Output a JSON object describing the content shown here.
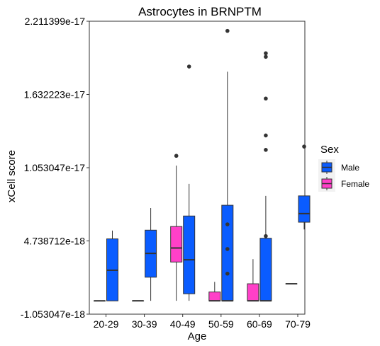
{
  "chart_data": {
    "type": "boxplot",
    "title": "Astrocytes in BRNPTM",
    "xlabel": "Age",
    "ylabel": "xCell score",
    "categories": [
      "20-29",
      "30-39",
      "40-49",
      "50-59",
      "60-69",
      "70-79"
    ],
    "y_ticks": [
      {
        "value": -1.053047e-18,
        "label": "-1.053047e-18"
      },
      {
        "value": 4.738712e-18,
        "label": "4.738712e-18"
      },
      {
        "value": 1.053047e-17,
        "label": "1.053047e-17"
      },
      {
        "value": 1.632223e-17,
        "label": "1.632223e-17"
      },
      {
        "value": 2.211399e-17,
        "label": "2.211399e-17"
      }
    ],
    "ylim": [
      -1.053047e-18,
      2.211399e-17
    ],
    "grid": false,
    "legend": {
      "title": "Sex",
      "placement": "right",
      "entries": [
        {
          "name": "Male",
          "color": "#0a5cff"
        },
        {
          "name": "Female",
          "color": "#ff40c8"
        }
      ]
    },
    "series": [
      {
        "name": "Female",
        "color": "#ff40c8",
        "boxes": [
          {
            "category": "20-29",
            "whisker_low": 0,
            "q1": 0,
            "median": 0,
            "q3": 0,
            "whisker_high": 0,
            "outliers": []
          },
          {
            "category": "30-39",
            "whisker_low": 0,
            "q1": 0,
            "median": 0,
            "q3": 0,
            "whisker_high": 0,
            "outliers": []
          },
          {
            "category": "40-49",
            "whisker_low": 0,
            "q1": 3.07e-18,
            "median": 4.18e-18,
            "q3": 5.88e-18,
            "whisker_high": 1.07e-17,
            "outliers": [
              1.147e-17
            ]
          },
          {
            "category": "50-59",
            "whisker_low": 0,
            "q1": 0,
            "median": 0,
            "q3": 7e-19,
            "whisker_high": 1.5e-18,
            "outliers": []
          },
          {
            "category": "60-69",
            "whisker_low": 0,
            "q1": 0,
            "median": 0,
            "q3": 1.35e-18,
            "whisker_high": 3.3e-18,
            "outliers": []
          },
          {
            "category": "70-79",
            "whisker_low": 1.35e-18,
            "q1": 1.35e-18,
            "median": 1.35e-18,
            "q3": 1.35e-18,
            "whisker_high": 1.35e-18,
            "outliers": []
          }
        ]
      },
      {
        "name": "Male",
        "color": "#0a5cff",
        "boxes": [
          {
            "category": "20-29",
            "whisker_low": 0,
            "q1": 0,
            "median": 2.42e-18,
            "q3": 4.9e-18,
            "whisker_high": 5.56e-18,
            "outliers": []
          },
          {
            "category": "30-39",
            "whisker_low": 0,
            "q1": 1.87e-18,
            "median": 3.75e-18,
            "q3": 5.59e-18,
            "whisker_high": 7.34e-18,
            "outliers": []
          },
          {
            "category": "40-49",
            "whisker_low": 0,
            "q1": 5.6e-19,
            "median": 3.25e-18,
            "q3": 6.71e-18,
            "whisker_high": 9.25e-18,
            "outliers": [
              1.853e-17
            ]
          },
          {
            "category": "50-59",
            "whisker_low": 0,
            "q1": 0,
            "median": 0,
            "q3": 7.56e-18,
            "whisker_high": 1.812e-17,
            "outliers": [
              2.135e-17,
              6.05e-18,
              4.1e-18,
              2.15e-18
            ]
          },
          {
            "category": "60-69",
            "whisker_low": 0,
            "q1": 0,
            "median": 0,
            "q3": 4.95e-18,
            "whisker_high": 8.3e-18,
            "outliers": [
              1.958e-17,
              1.93e-17,
              1.6e-17,
              1.308e-17,
              1.194e-17,
              5.12e-18
            ]
          },
          {
            "category": "70-79",
            "whisker_low": 5.65e-18,
            "q1": 6.22e-18,
            "median": 6.9e-18,
            "q3": 8.3e-18,
            "whisker_high": 8.3e-18,
            "outliers": [
              1.22e-17
            ]
          }
        ]
      }
    ]
  }
}
